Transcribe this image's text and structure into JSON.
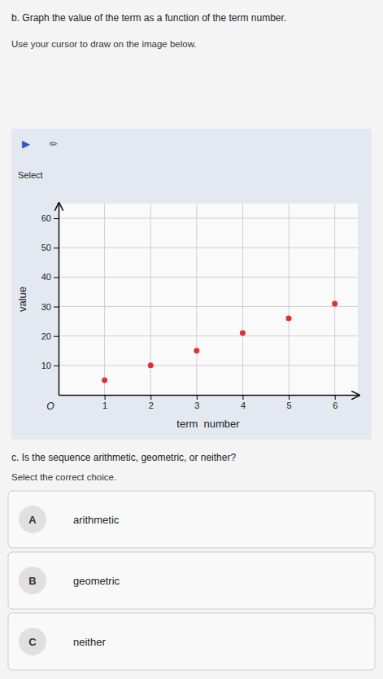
{
  "chart_data": {
    "type": "scatter",
    "title": "b. Graph the value of the term as a function of the term number.",
    "subtitle": "Use your cursor to draw on the image below.",
    "x": [
      1,
      2,
      3,
      4,
      5,
      6
    ],
    "values": [
      5,
      10,
      15,
      21,
      26,
      31
    ],
    "color": "#e03030",
    "xlabel": "term  number",
    "ylabel": "value",
    "xlim": [
      0,
      6.5
    ],
    "ylim": [
      0,
      65
    ],
    "xticks": [
      1,
      2,
      3,
      4,
      5,
      6
    ],
    "yticks": [
      10,
      20,
      30,
      40,
      50,
      60
    ],
    "grid": true,
    "annotations": [
      "▶",
      "✏",
      "Select",
      "O",
      "c. Is the sequence arithmetic, geometric, or neither?",
      "Select the correct choice.",
      "A",
      "arithmetic",
      "B",
      "geometric",
      "C",
      "neither"
    ]
  }
}
